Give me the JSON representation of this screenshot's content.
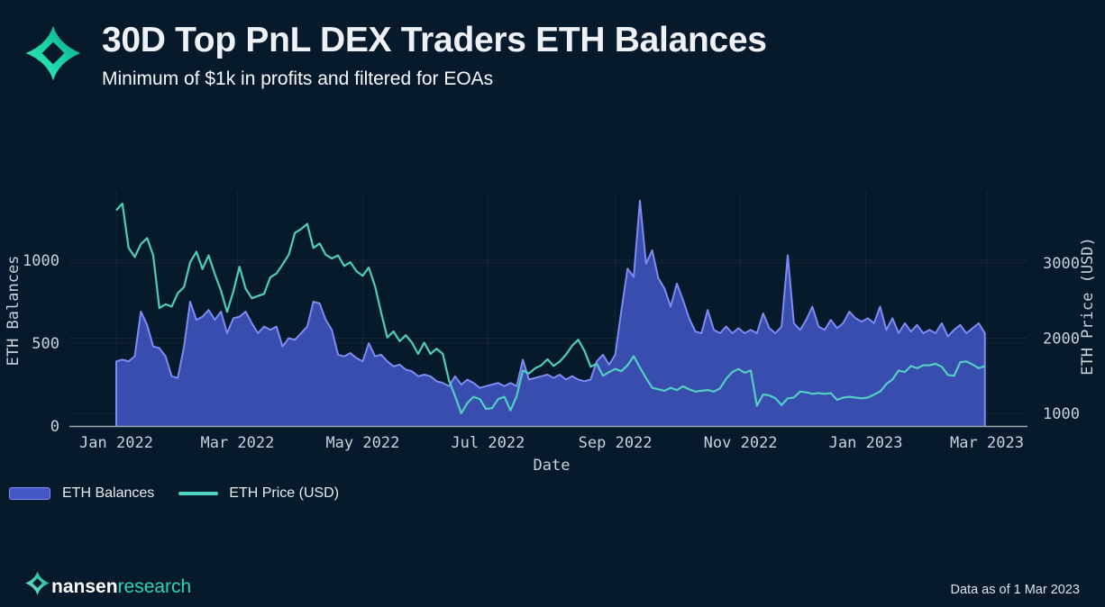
{
  "header": {
    "title": "30D Top PnL DEX Traders ETH Balances",
    "subtitle": "Minimum of $1k in profits and filtered for EOAs"
  },
  "legend": [
    {
      "label": "ETH Balances",
      "type": "area",
      "color": "#4457c4"
    },
    {
      "label": "ETH Price (USD)",
      "type": "line",
      "color": "#4fd4c2"
    }
  ],
  "footer": {
    "brand": {
      "name": "nansen",
      "suffix": "research"
    },
    "data_as_of": "Data as of 1 Mar 2023"
  },
  "colors": {
    "background": "#071a2b",
    "title": "#eef1f5",
    "subtitle": "#f7fafc",
    "area_fill": "#3d52b8",
    "area_stroke": "#7d8bf2",
    "price_line": "#53d6c3",
    "axis_text": "#c9d1d9",
    "axis_line": "#9aa5ae",
    "grid": "rgba(255,255,255,0.055)",
    "brand_teal": "#2dd3b2"
  },
  "chart_data": {
    "type": "area+line dual-axis time series",
    "title": "30D Top PnL DEX Traders ETH Balances",
    "x": {
      "label": "Date",
      "start_date": "2022-01-01",
      "end_date": "2023-03-01",
      "step_days": 3,
      "ticks": [
        {
          "label": "Jan 2022",
          "day": 0
        },
        {
          "label": "Mar 2022",
          "day": 59
        },
        {
          "label": "May 2022",
          "day": 120
        },
        {
          "label": "Jul 2022",
          "day": 181
        },
        {
          "label": "Sep 2022",
          "day": 243
        },
        {
          "label": "Nov 2022",
          "day": 304
        },
        {
          "label": "Jan 2023",
          "day": 365
        },
        {
          "label": "Mar 2023",
          "day": 424
        }
      ]
    },
    "y_left": {
      "label": "ETH Balances",
      "ticks": [
        0,
        500,
        1000
      ],
      "range": [
        0,
        1400
      ]
    },
    "y_right": {
      "label": "ETH Price (USD)",
      "ticks": [
        1000,
        2000,
        3000
      ],
      "range": [
        850,
        3950
      ]
    },
    "legend_position": "bottom-left",
    "grid": "faint horizontal and vertical at labeled ticks",
    "series": [
      {
        "name": "ETH Balances",
        "axis": "left",
        "type": "area",
        "values": [
          390,
          400,
          390,
          420,
          690,
          610,
          480,
          470,
          420,
          300,
          290,
          480,
          750,
          640,
          660,
          700,
          640,
          690,
          560,
          650,
          660,
          690,
          620,
          560,
          600,
          580,
          600,
          480,
          530,
          520,
          560,
          600,
          750,
          740,
          640,
          580,
          430,
          420,
          440,
          410,
          390,
          500,
          420,
          430,
          390,
          360,
          370,
          340,
          330,
          300,
          310,
          300,
          270,
          260,
          240,
          300,
          250,
          280,
          260,
          230,
          240,
          250,
          260,
          240,
          260,
          240,
          400,
          280,
          290,
          300,
          310,
          290,
          310,
          280,
          300,
          280,
          270,
          280,
          390,
          430,
          370,
          430,
          700,
          950,
          900,
          1360,
          980,
          1060,
          890,
          830,
          720,
          860,
          760,
          650,
          570,
          560,
          700,
          580,
          560,
          600,
          560,
          590,
          560,
          580,
          560,
          680,
          590,
          560,
          600,
          1030,
          620,
          580,
          640,
          720,
          600,
          580,
          640,
          590,
          620,
          690,
          650,
          630,
          650,
          620,
          720,
          580,
          650,
          560,
          620,
          570,
          610,
          560,
          580,
          560,
          620,
          540,
          580,
          610,
          560,
          590,
          620,
          560
        ]
      },
      {
        "name": "ETH Price (USD)",
        "axis": "right",
        "type": "line",
        "values": [
          3700,
          3790,
          3200,
          3080,
          3250,
          3330,
          3100,
          2400,
          2450,
          2420,
          2600,
          2680,
          3010,
          3150,
          2920,
          3100,
          2850,
          2630,
          2350,
          2620,
          2950,
          2660,
          2530,
          2560,
          2590,
          2810,
          2860,
          2980,
          3110,
          3400,
          3450,
          3520,
          3200,
          3260,
          3110,
          3060,
          3100,
          2960,
          3010,
          2890,
          2830,
          2940,
          2690,
          2340,
          2010,
          2090,
          1960,
          2040,
          1940,
          1790,
          1940,
          1790,
          1860,
          1790,
          1440,
          1230,
          1000,
          1140,
          1220,
          1190,
          1060,
          1070,
          1190,
          1220,
          1040,
          1230,
          1570,
          1530,
          1600,
          1640,
          1720,
          1630,
          1690,
          1780,
          1900,
          1980,
          1830,
          1620,
          1660,
          1500,
          1550,
          1590,
          1560,
          1640,
          1760,
          1610,
          1470,
          1340,
          1320,
          1300,
          1340,
          1310,
          1360,
          1320,
          1290,
          1300,
          1310,
          1290,
          1330,
          1460,
          1550,
          1590,
          1540,
          1570,
          1100,
          1250,
          1240,
          1200,
          1110,
          1200,
          1210,
          1290,
          1280,
          1260,
          1270,
          1260,
          1270,
          1180,
          1210,
          1220,
          1210,
          1200,
          1210,
          1250,
          1290,
          1390,
          1450,
          1570,
          1550,
          1630,
          1600,
          1640,
          1640,
          1660,
          1620,
          1510,
          1500,
          1680,
          1690,
          1650,
          1600,
          1630
        ]
      }
    ]
  }
}
